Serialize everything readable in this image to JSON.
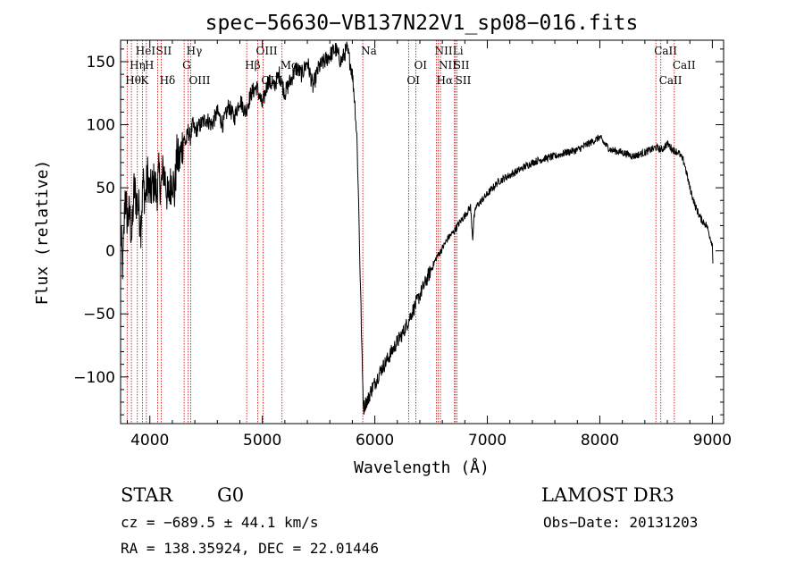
{
  "chart_data": {
    "type": "line",
    "title": "spec−56630−VB137N22V1_sp08−016.fits",
    "xlabel": "Wavelength (Å)",
    "ylabel": "Flux (relative)",
    "xlim": [
      3740,
      9100
    ],
    "ylim": [
      -137,
      167
    ],
    "xticks": [
      4000,
      5000,
      6000,
      7000,
      8000,
      9000
    ],
    "yticks": [
      -100,
      -50,
      0,
      50,
      100,
      150
    ],
    "ytick_labels": [
      "−100",
      "−50",
      "0",
      "50",
      "100",
      "150"
    ],
    "series": [
      {
        "name": "flux",
        "x": [
          3740,
          3760,
          3780,
          3800,
          3820,
          3840,
          3860,
          3880,
          3900,
          3920,
          3940,
          3960,
          3980,
          4000,
          4020,
          4040,
          4060,
          4080,
          4100,
          4120,
          4140,
          4160,
          4180,
          4200,
          4220,
          4240,
          4260,
          4280,
          4300,
          4320,
          4340,
          4360,
          4380,
          4400,
          4450,
          4500,
          4550,
          4600,
          4650,
          4700,
          4750,
          4800,
          4850,
          4900,
          4950,
          5000,
          5050,
          5100,
          5150,
          5200,
          5250,
          5300,
          5350,
          5400,
          5450,
          5500,
          5550,
          5600,
          5650,
          5700,
          5750,
          5780,
          5800,
          5820,
          5840,
          5850,
          5860,
          5870,
          5880,
          5890,
          5900,
          5920,
          5940,
          5960,
          5980,
          6000,
          6050,
          6100,
          6150,
          6200,
          6250,
          6300,
          6350,
          6400,
          6450,
          6500,
          6550,
          6600,
          6650,
          6700,
          6750,
          6800,
          6850,
          6870,
          6880,
          6900,
          6950,
          7000,
          7100,
          7200,
          7300,
          7400,
          7500,
          7600,
          7700,
          7800,
          7900,
          8000,
          8050,
          8100,
          8200,
          8300,
          8400,
          8500,
          8550,
          8600,
          8650,
          8700,
          8750,
          8800,
          8850,
          8900,
          8950,
          9000,
          9005
        ],
        "y": [
          15,
          -15,
          45,
          25,
          30,
          10,
          50,
          40,
          35,
          20,
          55,
          40,
          60,
          45,
          50,
          55,
          45,
          60,
          50,
          65,
          55,
          40,
          50,
          60,
          45,
          75,
          70,
          80,
          90,
          85,
          95,
          90,
          100,
          95,
          100,
          105,
          100,
          110,
          100,
          115,
          105,
          120,
          110,
          125,
          130,
          115,
          135,
          130,
          140,
          125,
          135,
          145,
          140,
          150,
          130,
          145,
          150,
          155,
          160,
          150,
          160,
          150,
          140,
          120,
          90,
          60,
          20,
          -20,
          -60,
          -100,
          -125,
          -120,
          -118,
          -112,
          -108,
          -105,
          -95,
          -88,
          -80,
          -72,
          -65,
          -55,
          -45,
          -35,
          -25,
          -15,
          -5,
          2,
          10,
          15,
          22,
          28,
          35,
          10,
          25,
          35,
          40,
          45,
          55,
          60,
          65,
          70,
          73,
          75,
          78,
          80,
          85,
          90,
          84,
          80,
          78,
          75,
          78,
          82,
          80,
          85,
          80,
          78,
          70,
          50,
          35,
          25,
          20,
          5,
          -10
        ]
      }
    ],
    "lines": [
      {
        "name": "Hθ",
        "x": 3798,
        "row": 3
      },
      {
        "name": "Hη",
        "x": 3836,
        "row": 2
      },
      {
        "name": "HeI",
        "x": 3889,
        "row": 1
      },
      {
        "name": "K",
        "x": 3934,
        "row": 3
      },
      {
        "name": "H",
        "x": 3969,
        "row": 2
      },
      {
        "name": "SII",
        "x": 4070,
        "row": 1
      },
      {
        "name": "Hδ",
        "x": 4102,
        "row": 3
      },
      {
        "name": "G",
        "x": 4305,
        "row": 2
      },
      {
        "name": "Hγ",
        "x": 4341,
        "row": 1
      },
      {
        "name": "OIII",
        "x": 4363,
        "row": 3
      },
      {
        "name": "Hβ",
        "x": 4861,
        "row": 2
      },
      {
        "name": "OIII",
        "x": 4959,
        "row": 1
      },
      {
        "name": "OIII",
        "x": 5007,
        "row": 3
      },
      {
        "name": "Mg",
        "x": 5175,
        "row": 2
      },
      {
        "name": "Na",
        "x": 5893,
        "row": 1
      },
      {
        "name": "OI",
        "x": 6300,
        "row": 3
      },
      {
        "name": "OI",
        "x": 6364,
        "row": 2
      },
      {
        "name": "NII",
        "x": 6548,
        "row": 1
      },
      {
        "name": "Hα",
        "x": 6563,
        "row": 3
      },
      {
        "name": "NII",
        "x": 6583,
        "row": 2
      },
      {
        "name": "Li",
        "x": 6708,
        "row": 1
      },
      {
        "name": "SII",
        "x": 6716,
        "row": 2
      },
      {
        "name": "SII",
        "x": 6731,
        "row": 3
      },
      {
        "name": "CaII",
        "x": 8498,
        "row": 1
      },
      {
        "name": "CaII",
        "x": 8542,
        "row": 3
      },
      {
        "name": "CaII",
        "x": 8662,
        "row": 2
      }
    ]
  },
  "info": {
    "object_class": "STAR",
    "subclass": "G0",
    "survey": "LAMOST DR3",
    "cz": "cz = −689.5 ± 44.1 km/s",
    "obs_date": "Obs−Date: 20131203",
    "coords": "RA = 138.35924, DEC =  22.01446"
  },
  "colors": {
    "line_marker": "#cc0000",
    "spectrum": "#000000"
  }
}
